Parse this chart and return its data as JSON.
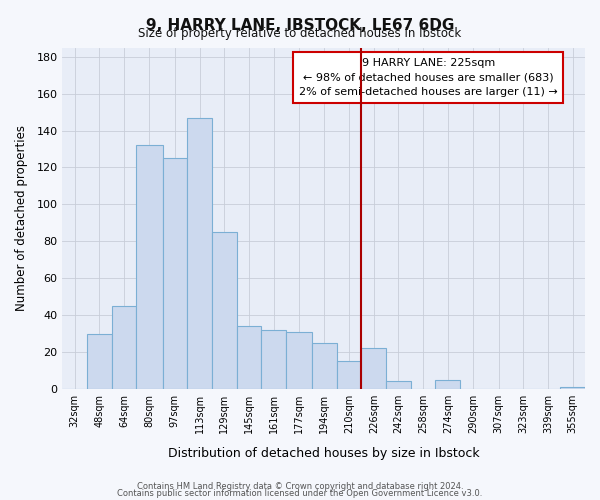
{
  "title": "9, HARRY LANE, IBSTOCK, LE67 6DG",
  "subtitle": "Size of property relative to detached houses in Ibstock",
  "xlabel": "Distribution of detached houses by size in Ibstock",
  "ylabel": "Number of detached properties",
  "categories": [
    "32sqm",
    "48sqm",
    "64sqm",
    "80sqm",
    "97sqm",
    "113sqm",
    "129sqm",
    "145sqm",
    "161sqm",
    "177sqm",
    "194sqm",
    "210sqm",
    "226sqm",
    "242sqm",
    "258sqm",
    "274sqm",
    "290sqm",
    "307sqm",
    "323sqm",
    "339sqm",
    "355sqm"
  ],
  "bar_values": [
    0,
    30,
    45,
    132,
    125,
    147,
    85,
    34,
    32,
    31,
    25,
    15,
    22,
    4,
    0,
    5,
    0,
    0,
    0,
    0,
    1
  ],
  "bar_left_edges": [
    32,
    48,
    64,
    80,
    97,
    113,
    129,
    145,
    161,
    177,
    194,
    210,
    226,
    242,
    258,
    274,
    290,
    307,
    323,
    339,
    355
  ],
  "bar_widths": [
    16,
    16,
    16,
    17,
    16,
    16,
    16,
    16,
    16,
    17,
    16,
    16,
    16,
    16,
    16,
    16,
    17,
    16,
    16,
    16,
    16
  ],
  "bar_color": "#ccd9ee",
  "bar_edge_color": "#7bafd4",
  "highlight_x": 226,
  "highlight_color": "#aa0000",
  "annotation_title": "9 HARRY LANE: 225sqm",
  "annotation_line1": "← 98% of detached houses are smaller (683)",
  "annotation_line2": "2% of semi-detached houses are larger (11) →",
  "annotation_box_facecolor": "#ffffff",
  "annotation_box_edgecolor": "#cc0000",
  "plot_bg": "#e8edf7",
  "fig_bg": "#f5f7fc",
  "grid_color": "#c8cdd8",
  "ylim": [
    0,
    185
  ],
  "yticks": [
    0,
    20,
    40,
    60,
    80,
    100,
    120,
    140,
    160,
    180
  ],
  "xlim_left": 32,
  "xlim_right": 371,
  "footer1": "Contains HM Land Registry data © Crown copyright and database right 2024.",
  "footer2": "Contains public sector information licensed under the Open Government Licence v3.0."
}
